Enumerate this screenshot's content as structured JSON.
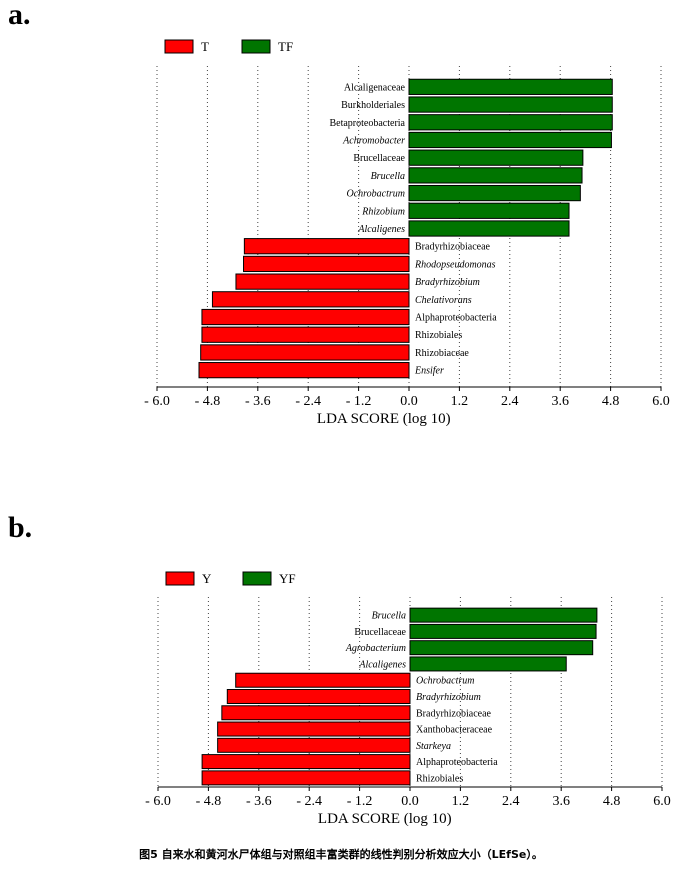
{
  "caption": "图5 自来水和黄河水尸体组与对照组丰富类群的线性判别分析效应大小（LEfSe）。",
  "colors": {
    "negative": "#ff0000",
    "positive": "#007500",
    "grid": "#444444"
  },
  "chart_data": [
    {
      "type": "bar",
      "orientation": "horizontal",
      "panel_label": "a.",
      "xlabel": "LDA SCORE (log 10)",
      "xlim": [
        -6.0,
        6.0
      ],
      "xticks": [
        "- 6.0",
        "- 4.8",
        "- 3.6",
        "- 2.4",
        "- 1.2",
        "0.0",
        "1.2",
        "2.4",
        "3.6",
        "4.8",
        "6.0"
      ],
      "legend": [
        {
          "name": "T",
          "color": "#ff0000"
        },
        {
          "name": "TF",
          "color": "#007500"
        }
      ],
      "legend_position": "top-left",
      "grid": "vertical dotted",
      "categories": [
        "Alcaligenaceae",
        "Burkholderiales",
        "Betaproteobacteria",
        "Achromobacter",
        "Brucellaceae",
        "Brucella",
        "Ochrobactrum",
        "Rhizobium",
        "Alcaligenes",
        "Bradyrhizobiaceae",
        "Rhodopseudomonas",
        "Bradyrhizobium",
        "Chelativorans",
        "Alphaproteobacteria",
        "Rhizobiales",
        "Rhizobiaceae",
        "Ensifer"
      ],
      "italic": [
        false,
        false,
        false,
        true,
        false,
        true,
        true,
        true,
        true,
        false,
        true,
        true,
        true,
        false,
        false,
        false,
        true
      ],
      "values": [
        4.84,
        4.84,
        4.84,
        4.82,
        4.14,
        4.12,
        4.08,
        3.81,
        3.81,
        -3.92,
        -3.94,
        -4.12,
        -4.68,
        -4.93,
        -4.93,
        -4.96,
        -5.0
      ]
    },
    {
      "type": "bar",
      "orientation": "horizontal",
      "panel_label": "b.",
      "xlabel": "LDA SCORE (log 10)",
      "xlim": [
        -6.0,
        6.0
      ],
      "xticks": [
        "- 6.0",
        "- 4.8",
        "- 3.6",
        "- 2.4",
        "- 1.2",
        "0.0",
        "1.2",
        "2.4",
        "3.6",
        "4.8",
        "6.0"
      ],
      "legend": [
        {
          "name": "Y",
          "color": "#ff0000"
        },
        {
          "name": "YF",
          "color": "#007500"
        }
      ],
      "legend_position": "top-left",
      "grid": "vertical dotted",
      "categories": [
        "Brucella",
        "Brucellaceae",
        "Agrobacterium",
        "Alcaligenes",
        "Ochrobactrum",
        "Bradyrhizobium",
        "Bradyrhizobiaceae",
        "Xanthobacteraceae",
        "Starkeya",
        "Alphaproteobacteria",
        "Rhizobiales"
      ],
      "italic": [
        true,
        false,
        true,
        true,
        true,
        true,
        false,
        false,
        true,
        false,
        false
      ],
      "values": [
        4.45,
        4.43,
        4.35,
        3.72,
        -4.15,
        -4.35,
        -4.48,
        -4.58,
        -4.58,
        -4.95,
        -4.95
      ]
    }
  ]
}
